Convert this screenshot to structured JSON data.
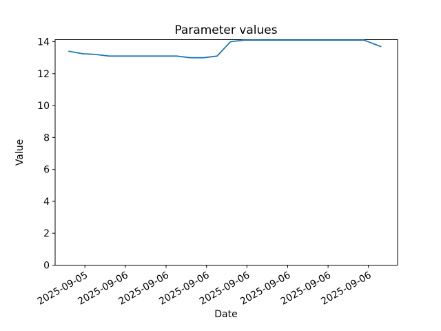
{
  "figure": {
    "background": "#ffffff"
  },
  "chart_data": {
    "type": "line",
    "title": "Parameter values",
    "xlabel": "Date",
    "ylabel": "Value",
    "line_color": "#1f77b4",
    "grid": false,
    "legend": "none",
    "ylim": [
      0,
      14.13
    ],
    "y_ticks": [
      0,
      2,
      4,
      6,
      8,
      10,
      12,
      14
    ],
    "x_ticks": [
      {
        "label": "2025-09-05",
        "pos": 0.087
      },
      {
        "label": "2025-09-06",
        "pos": 0.205
      },
      {
        "label": "2025-09-06",
        "pos": 0.324
      },
      {
        "label": "2025-09-06",
        "pos": 0.442
      },
      {
        "label": "2025-09-06",
        "pos": 0.56
      },
      {
        "label": "2025-09-06",
        "pos": 0.679
      },
      {
        "label": "2025-09-06",
        "pos": 0.797
      },
      {
        "label": "2025-09-06",
        "pos": 0.915
      }
    ],
    "series": [
      {
        "name": "Parameter values",
        "points": [
          {
            "x": 0.04,
            "y": 13.4
          },
          {
            "x": 0.08,
            "y": 13.25
          },
          {
            "x": 0.119,
            "y": 13.2
          },
          {
            "x": 0.158,
            "y": 13.1
          },
          {
            "x": 0.198,
            "y": 13.1
          },
          {
            "x": 0.237,
            "y": 13.1
          },
          {
            "x": 0.276,
            "y": 13.1
          },
          {
            "x": 0.316,
            "y": 13.1
          },
          {
            "x": 0.355,
            "y": 13.1
          },
          {
            "x": 0.394,
            "y": 13.0
          },
          {
            "x": 0.434,
            "y": 13.0
          },
          {
            "x": 0.473,
            "y": 13.1
          },
          {
            "x": 0.512,
            "y": 14.0
          },
          {
            "x": 0.552,
            "y": 14.1
          },
          {
            "x": 0.591,
            "y": 14.1
          },
          {
            "x": 0.63,
            "y": 14.1
          },
          {
            "x": 0.67,
            "y": 14.1
          },
          {
            "x": 0.709,
            "y": 14.1
          },
          {
            "x": 0.748,
            "y": 14.1
          },
          {
            "x": 0.788,
            "y": 14.1
          },
          {
            "x": 0.827,
            "y": 14.1
          },
          {
            "x": 0.866,
            "y": 14.1
          },
          {
            "x": 0.902,
            "y": 14.1
          },
          {
            "x": 0.951,
            "y": 13.7
          }
        ]
      }
    ]
  }
}
